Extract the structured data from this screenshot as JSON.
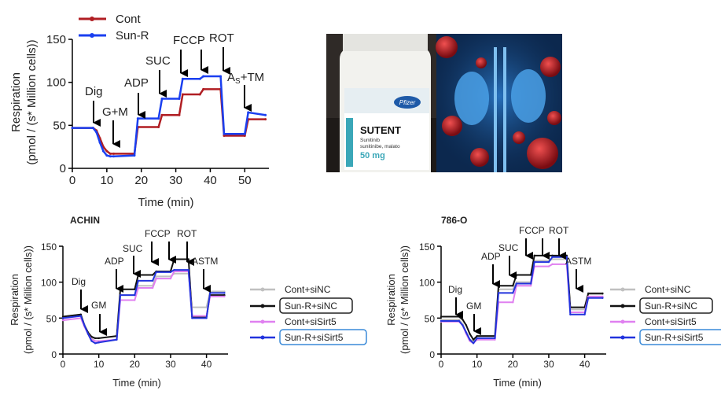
{
  "panel_a": {
    "legend": [
      "Cont",
      "Sun-R"
    ],
    "xlabel": "Time (min)",
    "ylabel_line1": "Respiration",
    "ylabel_line2": "(pmol / (s* Million cells))",
    "annotations": {
      "dig": "Dig",
      "gm": "G+M",
      "adp": "ADP",
      "suc": "SUC",
      "fccp": "FCCP",
      "rot": "ROT",
      "astm_a": "A",
      "astm_s": "S",
      "astm_rest": "+TM"
    }
  },
  "panel_achn": {
    "title": "ACHIN",
    "xlabel": "Time (min)",
    "ylabel_line1": "Respiration",
    "ylabel_line2": "(pmol / (s* Million cells))",
    "legend": [
      "Cont+siNC",
      "Sun-R+siNC",
      "Cont+siSirt5",
      "Sun-R+siSirt5"
    ],
    "annotations": {
      "dig": "Dig",
      "gm": "GM",
      "adp": "ADP",
      "suc": "SUC",
      "fccp": "FCCP",
      "rot": "ROT",
      "astm": "ASTM"
    }
  },
  "panel_786": {
    "title": "786-O",
    "xlabel": "Time (min)",
    "ylabel_line1": "Respiration",
    "ylabel_line2": "(pmol / (s* Million cells))",
    "legend": [
      "Cont+siNC",
      "Sun-R+siNC",
      "Cont+siSirt5",
      "Sun-R+siSirt5"
    ],
    "annotations": {
      "dig": "Dig",
      "gm": "GM",
      "adp": "ADP",
      "suc": "SUC",
      "fccp": "FCCP",
      "rot": "ROT",
      "astm": "ASTM"
    }
  },
  "photo": {
    "box_brand": "SUTENT",
    "box_line1": "Sunitinib",
    "box_line2": "sunitinibe, malato",
    "box_dose": "50 mg",
    "logo_text": "Pfizer"
  },
  "colors": {
    "cont": "#b01e23",
    "sunr": "#1a3ff0",
    "cont_sinc": "#c0c0c0",
    "sunr_sinc": "#111111",
    "cont_sisirt5": "#e080f0",
    "sunr_sisirt5": "#2233dd"
  },
  "chart_data": [
    {
      "type": "line",
      "xlim": [
        0,
        57
      ],
      "ylim": [
        0,
        150
      ],
      "xticks": [
        0,
        10,
        20,
        30,
        40,
        50
      ],
      "yticks": [
        0,
        50,
        100,
        150
      ],
      "series": [
        {
          "name": "Cont",
          "x": [
            0,
            6,
            7,
            8,
            9,
            10,
            11,
            12,
            18,
            19,
            25,
            26,
            31,
            32,
            37,
            38,
            43,
            44,
            50,
            51,
            56
          ],
          "y": [
            47,
            47,
            44,
            35,
            25,
            20,
            17,
            17,
            17,
            48,
            48,
            62,
            62,
            86,
            86,
            92,
            92,
            38,
            38,
            57,
            57
          ]
        },
        {
          "name": "Sun-R",
          "x": [
            0,
            6,
            7,
            8,
            9,
            10,
            11,
            12,
            18,
            19,
            25,
            26,
            31,
            32,
            37,
            38,
            43,
            44,
            50,
            51,
            56
          ],
          "y": [
            47,
            47,
            42,
            30,
            20,
            15,
            14,
            14,
            15,
            58,
            58,
            81,
            81,
            104,
            104,
            107,
            107,
            40,
            40,
            65,
            62
          ]
        }
      ]
    },
    {
      "type": "line",
      "title": "ACHIN",
      "xlim": [
        0,
        46
      ],
      "ylim": [
        0,
        150
      ],
      "xticks": [
        0,
        10,
        20,
        30,
        40
      ],
      "yticks": [
        0,
        50,
        100,
        150
      ],
      "series": [
        {
          "name": "Cont+siNC",
          "x": [
            0,
            5,
            6,
            7,
            8,
            9,
            10,
            15,
            16,
            20,
            21,
            25,
            26,
            30,
            31,
            35,
            36,
            40,
            41,
            45
          ],
          "y": [
            52,
            55,
            40,
            30,
            22,
            18,
            17,
            20,
            82,
            82,
            95,
            95,
            108,
            108,
            112,
            112,
            65,
            65,
            87,
            87
          ]
        },
        {
          "name": "Sun-R+siNC",
          "x": [
            0,
            5,
            6,
            7,
            8,
            9,
            10,
            15,
            16,
            20,
            21,
            25,
            26,
            30,
            31,
            35,
            36,
            40,
            41,
            45
          ],
          "y": [
            52,
            55,
            40,
            30,
            24,
            22,
            22,
            25,
            90,
            90,
            110,
            110,
            115,
            115,
            132,
            132,
            52,
            52,
            82,
            82
          ]
        },
        {
          "name": "Cont+siSirt5",
          "x": [
            0,
            5,
            6,
            7,
            8,
            9,
            10,
            15,
            16,
            20,
            21,
            25,
            26,
            30,
            31,
            35,
            36,
            40,
            41,
            45
          ],
          "y": [
            47,
            50,
            38,
            28,
            20,
            18,
            18,
            20,
            75,
            75,
            92,
            92,
            105,
            105,
            115,
            115,
            53,
            53,
            80,
            80
          ]
        },
        {
          "name": "Sun-R+siSirt5",
          "x": [
            0,
            5,
            6,
            7,
            8,
            9,
            10,
            15,
            16,
            20,
            21,
            25,
            26,
            30,
            31,
            35,
            36,
            40,
            41,
            45
          ],
          "y": [
            50,
            53,
            40,
            28,
            18,
            15,
            16,
            20,
            82,
            82,
            102,
            102,
            114,
            114,
            117,
            117,
            50,
            50,
            85,
            85
          ]
        }
      ]
    },
    {
      "type": "line",
      "title": "786-O",
      "xlim": [
        0,
        46
      ],
      "ylim": [
        0,
        150
      ],
      "xticks": [
        0,
        10,
        20,
        30,
        40
      ],
      "yticks": [
        0,
        50,
        100,
        150
      ],
      "series": [
        {
          "name": "Cont+siNC",
          "x": [
            0,
            5,
            6,
            7,
            8,
            9,
            10,
            15,
            16,
            20,
            21,
            25,
            26,
            30,
            31,
            35,
            36,
            40,
            41,
            45
          ],
          "y": [
            48,
            48,
            42,
            30,
            20,
            18,
            20,
            22,
            90,
            90,
            100,
            100,
            130,
            130,
            132,
            132,
            62,
            62,
            85,
            85
          ]
        },
        {
          "name": "Sun-R+siNC",
          "x": [
            0,
            5,
            6,
            7,
            8,
            9,
            10,
            15,
            16,
            20,
            21,
            25,
            26,
            30,
            31,
            35,
            36,
            40,
            41,
            45
          ],
          "y": [
            52,
            52,
            48,
            40,
            28,
            20,
            25,
            25,
            95,
            95,
            110,
            110,
            137,
            137,
            137,
            137,
            65,
            65,
            84,
            84
          ]
        },
        {
          "name": "Cont+siSirt5",
          "x": [
            0,
            5,
            6,
            7,
            8,
            9,
            10,
            15,
            16,
            20,
            21,
            25,
            26,
            30,
            31,
            35,
            36,
            40,
            41,
            45
          ],
          "y": [
            45,
            45,
            40,
            28,
            18,
            15,
            20,
            20,
            72,
            72,
            95,
            95,
            122,
            122,
            125,
            125,
            58,
            58,
            80,
            80
          ]
        },
        {
          "name": "Sun-R+siSirt5",
          "x": [
            0,
            5,
            6,
            7,
            8,
            9,
            10,
            15,
            16,
            20,
            21,
            25,
            26,
            30,
            31,
            35,
            36,
            40,
            41,
            45
          ],
          "y": [
            46,
            46,
            40,
            30,
            20,
            15,
            22,
            22,
            85,
            85,
            98,
            98,
            128,
            128,
            135,
            135,
            55,
            55,
            78,
            78
          ]
        }
      ]
    }
  ]
}
